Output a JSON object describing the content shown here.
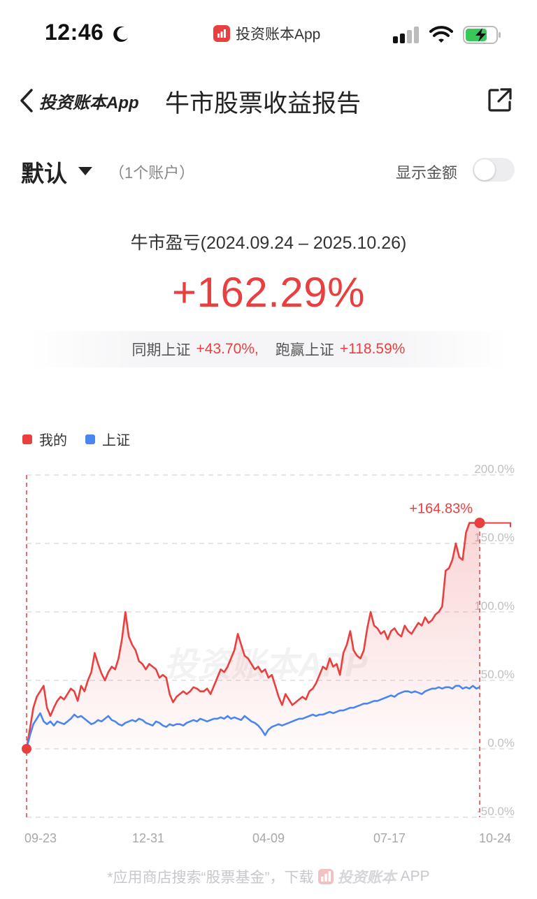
{
  "status_bar": {
    "time": "12:46",
    "app_label": "投资账本App"
  },
  "nav": {
    "back_label": "投资账本App",
    "title": "牛市股票收益报告"
  },
  "account": {
    "name": "默认",
    "count": "（1个账户）",
    "amount_label": "显示金额",
    "amount_toggle_on": false
  },
  "summary": {
    "period_label": "牛市盈亏(2024.09.24 – 2025.10.26)",
    "return_value": "+162.29%",
    "index_label": "同期上证",
    "index_value": "+43.70%,",
    "beat_label": "跑赢上证",
    "beat_value": "+118.59%"
  },
  "colors": {
    "mine": "#ea3f3f",
    "index": "#4a86f0",
    "grid": "#dddddd"
  },
  "chart_data": {
    "type": "line",
    "x_tick_labels": [
      "09-23",
      "12-31",
      "04-09",
      "07-17",
      "10-24"
    ],
    "y_tick_labels": [
      "200.0%",
      "150.0%",
      "100.0%",
      "50.0%",
      "0.0%",
      "-50.0%"
    ],
    "ylim": [
      -50,
      200
    ],
    "end_label": "+164.83%",
    "legend_position": "top-left",
    "grid": true,
    "series": [
      {
        "name": "我的",
        "values": [
          0,
          15,
          30,
          38,
          42,
          46,
          30,
          24,
          30,
          35,
          38,
          36,
          40,
          44,
          42,
          35,
          46,
          42,
          50,
          56,
          70,
          62,
          55,
          50,
          56,
          60,
          58,
          66,
          80,
          100,
          82,
          76,
          72,
          64,
          62,
          58,
          62,
          60,
          58,
          52,
          54,
          52,
          40,
          34,
          38,
          40,
          42,
          40,
          42,
          45,
          44,
          42,
          42,
          44,
          40,
          46,
          52,
          58,
          56,
          60,
          66,
          72,
          84,
          76,
          68,
          66,
          62,
          58,
          60,
          56,
          58,
          52,
          54,
          46,
          38,
          32,
          40,
          36,
          32,
          34,
          36,
          38,
          36,
          42,
          44,
          48,
          54,
          60,
          58,
          66,
          60,
          62,
          54,
          70,
          76,
          86,
          72,
          68,
          66,
          72,
          88,
          100,
          90,
          88,
          84,
          86,
          80,
          86,
          88,
          84,
          82,
          90,
          86,
          84,
          88,
          92,
          90,
          96,
          92,
          94,
          98,
          100,
          104,
          130,
          132,
          138,
          150,
          140,
          138,
          158,
          165,
          165,
          165,
          164
        ]
      },
      {
        "name": "上证",
        "values": [
          0,
          10,
          18,
          22,
          26,
          20,
          18,
          20,
          17,
          20,
          19,
          18,
          20,
          22,
          25,
          23,
          24,
          22,
          20,
          18,
          19,
          21,
          20,
          22,
          24,
          21,
          20,
          18,
          17,
          19,
          20,
          21,
          20,
          22,
          21,
          19,
          18,
          17,
          20,
          19,
          17,
          16,
          18,
          17,
          18,
          18,
          17,
          19,
          20,
          21,
          20,
          22,
          21,
          20,
          21,
          22,
          22,
          23,
          22,
          24,
          22,
          23,
          22,
          21,
          24,
          22,
          20,
          19,
          17,
          14,
          10,
          14,
          16,
          17,
          18,
          17,
          18,
          19,
          20,
          21,
          22,
          22,
          23,
          24,
          25,
          24,
          25,
          25,
          26,
          27,
          26,
          27,
          28,
          28,
          29,
          30,
          30,
          31,
          32,
          33,
          33,
          34,
          35,
          35,
          36,
          37,
          38,
          39,
          38,
          40,
          41,
          42,
          42,
          41,
          42,
          41,
          40,
          42,
          43,
          44,
          44,
          45,
          44,
          45,
          45,
          44,
          46,
          46,
          44,
          45,
          44,
          46,
          44,
          45
        ]
      }
    ]
  },
  "watermark": "投资账本APP",
  "footer": {
    "text": "*应用商店搜索“股票基金”，下载",
    "brand": "投资账本",
    "suffix": "APP"
  }
}
